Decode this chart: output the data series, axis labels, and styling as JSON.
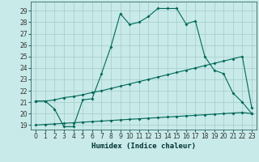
{
  "xlabel": "Humidex (Indice chaleur)",
  "bg_color": "#c8eae8",
  "grid_color": "#a4ccca",
  "line_color": "#006858",
  "xlim": [
    -0.5,
    23.5
  ],
  "ylim": [
    18.6,
    29.8
  ],
  "yticks": [
    19,
    20,
    21,
    22,
    23,
    24,
    25,
    26,
    27,
    28,
    29
  ],
  "xticks": [
    0,
    1,
    2,
    3,
    4,
    5,
    6,
    7,
    8,
    9,
    10,
    11,
    12,
    13,
    14,
    15,
    16,
    17,
    18,
    19,
    20,
    21,
    22,
    23
  ],
  "s1_x": [
    0,
    1,
    2,
    3,
    4,
    5,
    6,
    7,
    8,
    9,
    10,
    11,
    12,
    13,
    14,
    15,
    16,
    17,
    18,
    19,
    20,
    21,
    22,
    23
  ],
  "s1_y": [
    19.0,
    19.05,
    19.1,
    19.15,
    19.2,
    19.25,
    19.3,
    19.35,
    19.4,
    19.45,
    19.5,
    19.55,
    19.6,
    19.65,
    19.7,
    19.75,
    19.8,
    19.85,
    19.9,
    19.95,
    20.0,
    20.05,
    20.1,
    20.0
  ],
  "s2_x": [
    0,
    1,
    2,
    3,
    4,
    5,
    6,
    7,
    8,
    9,
    10,
    11,
    12,
    13,
    14,
    15,
    16,
    17,
    18,
    19,
    20,
    21,
    22,
    23
  ],
  "s2_y": [
    21.1,
    21.1,
    21.2,
    21.4,
    21.5,
    21.65,
    21.85,
    22.0,
    22.2,
    22.4,
    22.6,
    22.8,
    23.0,
    23.2,
    23.4,
    23.6,
    23.8,
    24.0,
    24.2,
    24.4,
    24.6,
    24.8,
    25.0,
    20.5
  ],
  "s3_x": [
    0,
    1,
    2,
    3,
    4,
    5,
    6,
    7,
    8,
    9,
    10,
    11,
    12,
    13,
    14,
    15,
    16,
    17,
    18,
    19,
    20,
    21,
    22,
    23
  ],
  "s3_y": [
    21.1,
    21.1,
    20.4,
    18.85,
    18.85,
    21.2,
    21.3,
    23.5,
    25.85,
    28.75,
    27.8,
    28.0,
    28.5,
    29.2,
    29.2,
    29.2,
    27.85,
    28.1,
    25.0,
    23.8,
    23.5,
    21.8,
    21.0,
    20.0
  ],
  "xlabel_fontsize": 6.5,
  "tick_fontsize": 5.5,
  "lw": 0.8,
  "ms": 2.0
}
